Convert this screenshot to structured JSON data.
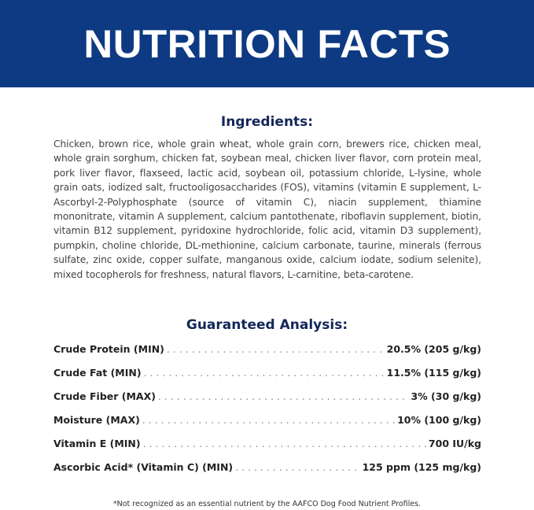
{
  "header": {
    "title": "NUTRITION FACTS",
    "background": "#0d3a82"
  },
  "ingredients": {
    "title": "Ingredients:",
    "text": "Chicken, brown rice, whole grain wheat, whole grain corn, brewers rice, chicken meal, whole grain sorghum, chicken fat, soybean meal, chicken liver flavor, corn protein meal, pork liver flavor, flaxseed, lactic acid, soybean oil, potassium chloride, L-lysine, whole grain oats, iodized salt, fructooligosaccharides (FOS), vitamins (vitamin E supplement, L-Ascorbyl-2-Polyphosphate (source of vitamin C), niacin supplement, thiamine mononitrate, vitamin A supplement, calcium pantothenate, riboflavin supplement, biotin, vitamin B12 supplement, pyridoxine hydrochloride, folic acid, vitamin D3 supplement), pumpkin, choline chloride, DL-methionine, calcium carbonate, taurine, minerals (ferrous sulfate, zinc oxide, copper sulfate, manganous oxide, calcium iodate, sodium selenite), mixed tocopherols for freshness, natural flavors, L-carnitine, beta-carotene."
  },
  "analysis": {
    "title": "Guaranteed Analysis:",
    "rows": [
      {
        "label": "Crude Protein (MIN)",
        "value": "20.5% (205 g/kg)"
      },
      {
        "label": "Crude Fat (MIN)",
        "value": "11.5% (115 g/kg)"
      },
      {
        "label": "Crude Fiber (MAX)",
        "value": "3% (30 g/kg)"
      },
      {
        "label": "Moisture (MAX)",
        "value": "10% (100 g/kg)"
      },
      {
        "label": "Vitamin E (MIN)",
        "value": "700 IU/kg"
      },
      {
        "label": "Ascorbic Acid* (Vitamin C) (MIN)",
        "value": "125 ppm (125 mg/kg)"
      }
    ]
  },
  "footnote": "*Not recognized as an essential nutrient by the AAFCO Dog Food Nutrient Profiles."
}
